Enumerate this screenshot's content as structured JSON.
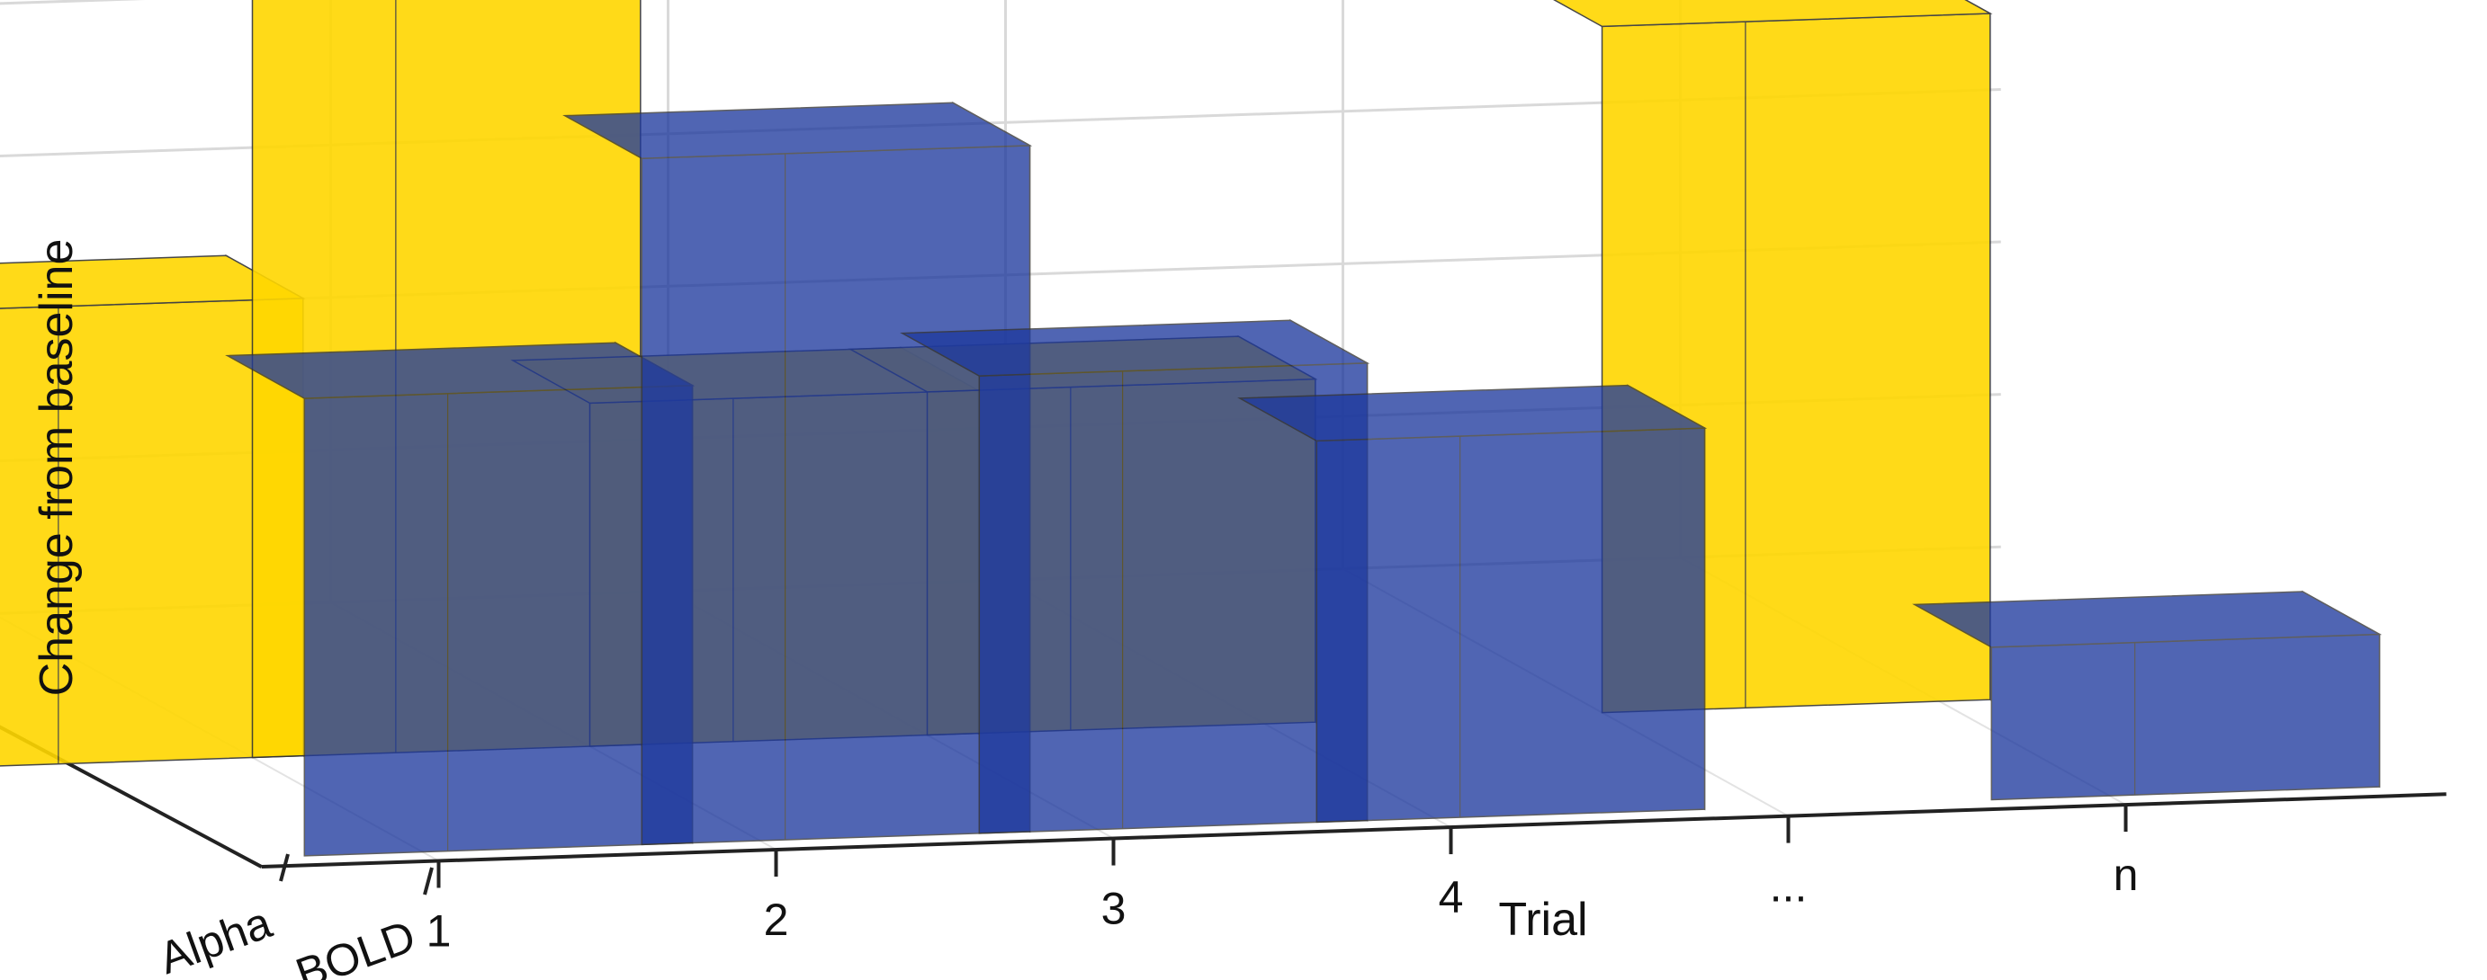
{
  "chart_data": {
    "type": "bar",
    "title": "",
    "xlabel": "Trial",
    "ylabel": "Change from baseline",
    "categories": [
      "1",
      "2",
      "3",
      "4",
      "...",
      "n"
    ],
    "series_axis_labels": [
      "Alpha",
      "BOLD"
    ],
    "series": [
      {
        "name": "Alpha",
        "color": "#FFD700",
        "values": [
          0.6,
          1.0,
          0.45,
          0.45,
          null,
          0.9
        ]
      },
      {
        "name": "BOLD",
        "color": "#1F3A9E",
        "values": [
          0.6,
          0.9,
          0.6,
          0.5,
          null,
          0.2
        ]
      }
    ],
    "zlim": [
      0,
      1.05
    ],
    "z_ticks": [
      "0",
      "0.2",
      "0.4",
      "0.6",
      "0.8",
      "1"
    ],
    "grid": true
  }
}
